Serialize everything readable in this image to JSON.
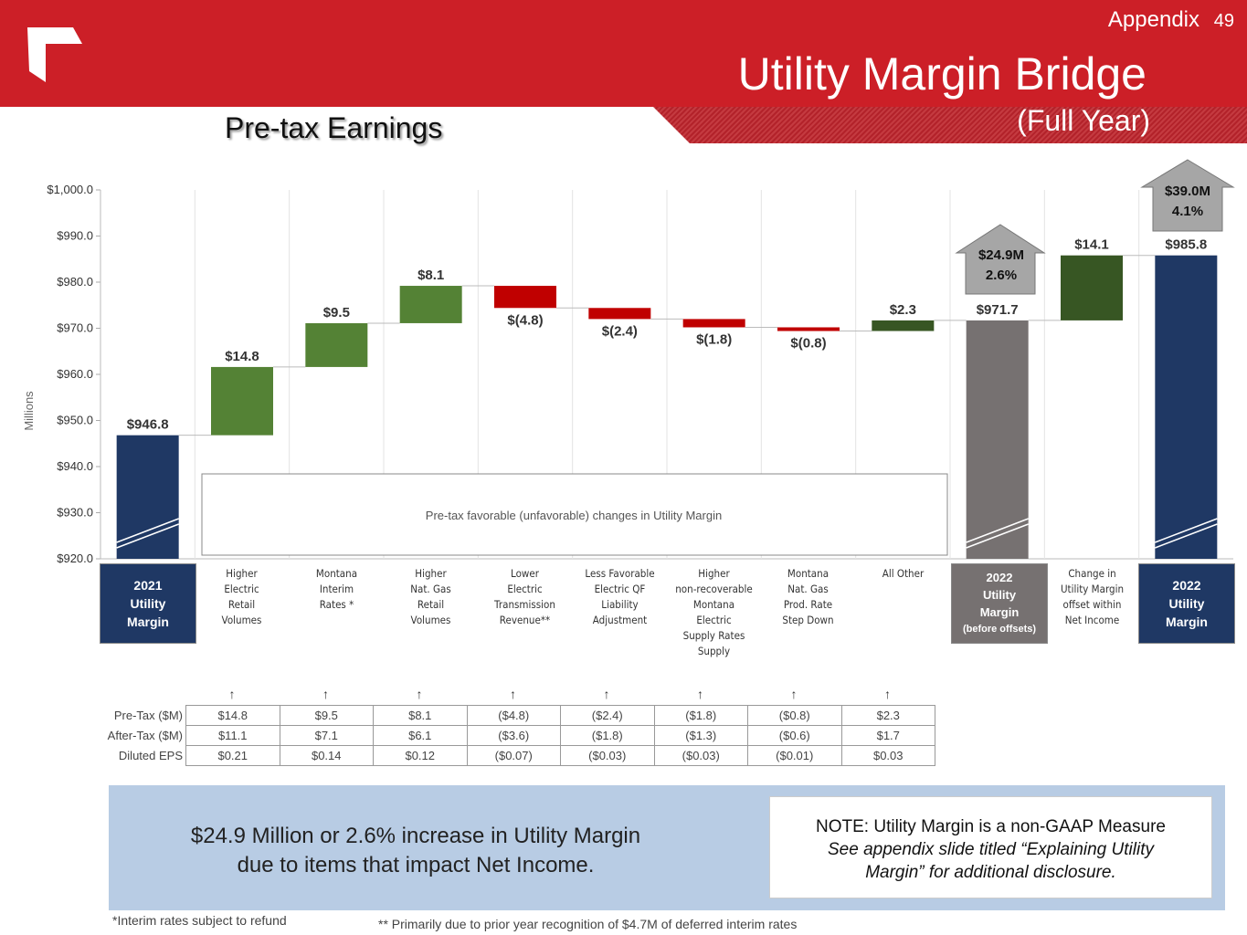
{
  "header": {
    "section": "Appendix",
    "page": "49",
    "title": "Utility Margin Bridge",
    "subtitle": "(Full Year)"
  },
  "chart_heading": "Pre-tax Earnings",
  "chart_data": {
    "type": "waterfall",
    "ylabel": "Millions",
    "ylim": [
      920,
      1000
    ],
    "yticks": [
      "$920.0",
      "$930.0",
      "$940.0",
      "$950.0",
      "$960.0",
      "$970.0",
      "$980.0",
      "$990.0",
      "$1,000.0"
    ],
    "steps": [
      {
        "category": "2021 Utility Margin",
        "kind": "total",
        "value": 946.8,
        "label": "$946.8",
        "color": "#1f3864"
      },
      {
        "category": "Higher Electric Retail Volumes",
        "kind": "delta",
        "value": 14.8,
        "label": "$14.8",
        "color": "#548235"
      },
      {
        "category": "Montana Interim Rates *",
        "kind": "delta",
        "value": 9.5,
        "label": "$9.5",
        "color": "#548235"
      },
      {
        "category": "Higher Nat. Gas Retail Volumes",
        "kind": "delta",
        "value": 8.1,
        "label": "$8.1",
        "color": "#548235"
      },
      {
        "category": "Lower Electric Transmission Revenue**",
        "kind": "delta",
        "value": -4.8,
        "label": "$(4.8)",
        "color": "#c00000"
      },
      {
        "category": "Less Favorable Electric QF Liability Adjustment",
        "kind": "delta",
        "value": -2.4,
        "label": "$(2.4)",
        "color": "#c00000"
      },
      {
        "category": "Higher non-recoverable Montana Electric Supply Rates Supply",
        "kind": "delta",
        "value": -1.8,
        "label": "$(1.8)",
        "color": "#c00000"
      },
      {
        "category": "Montana Nat. Gas Prod. Rate Step Down",
        "kind": "delta",
        "value": -0.8,
        "label": "$(0.8)",
        "color": "#c00000"
      },
      {
        "category": "All Other",
        "kind": "delta",
        "value": 2.3,
        "label": "$2.3",
        "color": "#375623"
      },
      {
        "category": "2022 Utility Margin (before offsets)",
        "kind": "total",
        "value": 971.7,
        "label": "$971.7",
        "color": "#767171"
      },
      {
        "category": "Change in Utility Margin offset within Net Income",
        "kind": "delta",
        "value": 14.1,
        "label": "$14.1",
        "color": "#375623"
      },
      {
        "category": "2022 Utility Margin",
        "kind": "total",
        "value": 985.8,
        "label": "$985.8",
        "color": "#1f3864"
      }
    ],
    "annotation": "Pre-tax favorable (unfavorable) changes in Utility Margin"
  },
  "categories": [
    {
      "lines": [
        "Higher",
        "Electric",
        "Retail",
        "Volumes"
      ]
    },
    {
      "lines": [
        "Montana",
        "Interim",
        "Rates *"
      ]
    },
    {
      "lines": [
        "Higher",
        "Nat. Gas",
        "Retail",
        "Volumes"
      ]
    },
    {
      "lines": [
        "Lower",
        "Electric",
        "Transmission",
        "Revenue**"
      ]
    },
    {
      "lines": [
        "Less Favorable",
        "Electric QF",
        "Liability",
        "Adjustment"
      ]
    },
    {
      "lines": [
        "Higher",
        "non-recoverable",
        "Montana",
        "Electric",
        "Supply Rates",
        "Supply"
      ]
    },
    {
      "lines": [
        "Montana",
        "Nat. Gas",
        "Prod. Rate",
        "Step Down"
      ]
    },
    {
      "lines": [
        "All Other"
      ]
    }
  ],
  "totals": {
    "start": {
      "l1": "2021",
      "l2": "Utility",
      "l3": "Margin"
    },
    "mid": {
      "l1": "2022",
      "l2": "Utility",
      "l3": "Margin",
      "l4": "(before offsets)"
    },
    "change": {
      "l1": "Change in",
      "l2": "Utility Margin",
      "l3": "offset within",
      "l4": "Net Income"
    },
    "end": {
      "l1": "2022",
      "l2": "Utility",
      "l3": "Margin"
    }
  },
  "callouts": {
    "mid": {
      "amount": "$24.9M",
      "pct": "2.6%"
    },
    "end": {
      "amount": "$39.0M",
      "pct": "4.1%"
    }
  },
  "table": {
    "row_labels": [
      "Pre-Tax ($M)",
      "After-Tax ($M)",
      "Diluted EPS"
    ],
    "rows": [
      [
        "$14.8",
        "$9.5",
        "$8.1",
        "($4.8)",
        "($2.4)",
        "($1.8)",
        "($0.8)",
        "$2.3"
      ],
      [
        "$11.1",
        "$7.1",
        "$6.1",
        "($3.6)",
        "($1.8)",
        "($1.3)",
        "($0.6)",
        "$1.7"
      ],
      [
        "$0.21",
        "$0.14",
        "$0.12",
        "($0.07)",
        "($0.03)",
        "($0.03)",
        "($0.01)",
        "$0.03"
      ]
    ]
  },
  "summary": {
    "line1": "$24.9 Million or 2.6% increase in Utility Margin",
    "line2": "due to items that impact Net Income."
  },
  "note": {
    "line1": "NOTE: Utility Margin is a non-GAAP Measure",
    "line2": "See appendix slide titled “Explaining Utility",
    "line3": "Margin” for additional disclosure."
  },
  "footnotes": {
    "f1": "*Interim rates subject to refund",
    "f2": "** Primarily due to prior year recognition of $4.7M of deferred interim rates"
  }
}
